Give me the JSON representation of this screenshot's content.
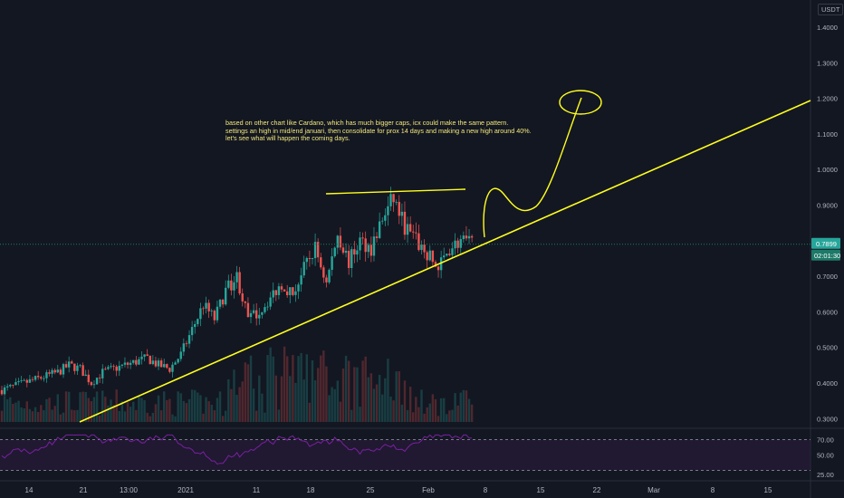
{
  "currency_label": "USDT",
  "annotation": [
    "based on other chart like Cardano, which has much bigger caps, icx could make the same pattern.",
    "settings an high in mid/end januari, then consolidate for prox 14 days and making a new high around 40%.",
    "let's see what will happen the coming days."
  ],
  "price_badge": "0.7899",
  "countdown_badge": "02:01:30",
  "colors": {
    "background": "#131722",
    "up": "#26a69a",
    "down": "#ef5350",
    "drawing": "#ffff1c",
    "rsi_line": "#7b1fa2",
    "rsi_band": "#2a1a3c",
    "price_line": "#1b7d58"
  },
  "chart_data": {
    "type": "candlestick",
    "price_axis": {
      "ticks": [
        "1.4000",
        "1.3000",
        "1.2000",
        "1.1000",
        "1.0000",
        "0.9000",
        "0.8000",
        "0.7000",
        "0.6000",
        "0.5000",
        "0.4000",
        "0.3000"
      ],
      "range": [
        0.3,
        1.4
      ]
    },
    "time_axis_labels": [
      "14",
      "21",
      "13:00",
      "2021",
      "11",
      "18",
      "25",
      "Feb",
      "8",
      "15",
      "22",
      "Mar",
      "8",
      "15"
    ],
    "last_price": 0.7899,
    "price_trend": {
      "days": [
        0,
        3,
        6,
        9,
        12,
        15,
        18,
        21,
        24,
        27,
        30,
        33,
        36,
        39,
        42,
        45,
        48,
        51,
        54,
        57,
        60,
        63,
        66,
        69,
        72,
        75,
        78,
        81,
        84,
        87,
        90,
        93,
        96,
        99,
        102,
        105,
        108,
        111,
        114,
        117,
        120,
        123,
        126
      ],
      "closes": [
        0.38,
        0.39,
        0.4,
        0.41,
        0.42,
        0.43,
        0.45,
        0.44,
        0.4,
        0.43,
        0.44,
        0.45,
        0.46,
        0.47,
        0.45,
        0.44,
        0.48,
        0.55,
        0.62,
        0.58,
        0.66,
        0.7,
        0.58,
        0.6,
        0.64,
        0.68,
        0.65,
        0.72,
        0.78,
        0.68,
        0.82,
        0.74,
        0.8,
        0.78,
        0.86,
        0.92,
        0.84,
        0.8,
        0.76,
        0.72,
        0.78,
        0.8,
        0.79
      ]
    },
    "rsi": {
      "levels": [
        "70.00",
        "50.00",
        "25.00"
      ],
      "range": [
        20,
        80
      ]
    }
  }
}
